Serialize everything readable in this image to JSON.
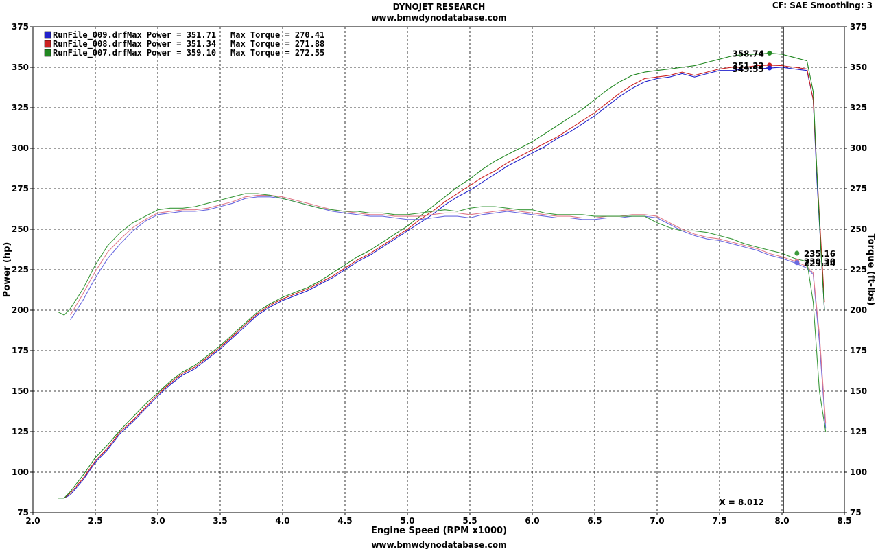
{
  "header": {
    "title": "DYNOJET RESEARCH",
    "website_top": "www.bmwdynodatabase.com",
    "settings": "CF: SAE  Smoothing: 3",
    "website_bottom": "www.bmwdynodatabase.com"
  },
  "colors": {
    "background": "#ffffff",
    "grid": "#000000",
    "run_009": "#2222cc",
    "run_008": "#cc2222",
    "run_007": "#228822",
    "run_009_torque": "#6a6ae0",
    "run_008_torque": "#e07a8a",
    "run_007_torque": "#3d9a3d"
  },
  "chart_data": {
    "type": "line",
    "title": "DYNOJET RESEARCH",
    "xlabel": "Engine Speed (RPM x1000)",
    "ylabel": "Power (hp)",
    "ylabel_right": "Torque (ft-lbs)",
    "xlim": [
      2.0,
      8.5
    ],
    "ylim": [
      75,
      375
    ],
    "ylim_right": [
      75,
      375
    ],
    "grid": true,
    "legend_position": "top-left",
    "x_ticks": [
      "2.0",
      "2.5",
      "3.0",
      "3.5",
      "4.0",
      "4.5",
      "5.0",
      "5.5",
      "6.0",
      "6.5",
      "7.0",
      "7.5",
      "8.0",
      "8.5"
    ],
    "y_ticks": [
      "75",
      "100",
      "125",
      "150",
      "175",
      "200",
      "225",
      "250",
      "275",
      "300",
      "325",
      "350",
      "375"
    ],
    "cursor": {
      "x": 8.012,
      "label": "X = 8.012"
    },
    "legend": [
      {
        "file": "RunFile_009.drf",
        "power_text": "Max Power = 351.71",
        "torque_text": "Max Torque = 270.41",
        "color_key": "run_009"
      },
      {
        "file": "RunFile_008.drf",
        "power_text": "Max Power = 351.34",
        "torque_text": "Max Torque = 271.88",
        "color_key": "run_008"
      },
      {
        "file": "RunFile_007.drf",
        "power_text": "Max Power = 359.10",
        "torque_text": "Max Torque = 272.55",
        "color_key": "run_007"
      }
    ],
    "cursor_readouts": {
      "power": [
        {
          "label": "358.74",
          "value": 358.74,
          "color_key": "run_007"
        },
        {
          "label": "351.32",
          "value": 351.32,
          "color_key": "run_008"
        },
        {
          "label": "349.55",
          "value": 349.55,
          "color_key": "run_009"
        }
      ],
      "torque": [
        {
          "label": "235.16",
          "value": 235.16,
          "color_key": "run_007_torque"
        },
        {
          "label": "230.30",
          "value": 230.3,
          "color_key": "run_008_torque"
        },
        {
          "label": "229.34",
          "value": 229.34,
          "color_key": "run_009_torque"
        }
      ]
    },
    "series": [
      {
        "name": "RunFile_009.drf",
        "measure": "power",
        "color_key": "run_009",
        "x": [
          2.25,
          2.3,
          2.4,
          2.5,
          2.6,
          2.7,
          2.8,
          2.9,
          3.0,
          3.1,
          3.2,
          3.3,
          3.4,
          3.5,
          3.6,
          3.7,
          3.8,
          3.9,
          4.0,
          4.1,
          4.2,
          4.3,
          4.4,
          4.5,
          4.6,
          4.7,
          4.8,
          4.9,
          5.0,
          5.1,
          5.2,
          5.3,
          5.4,
          5.5,
          5.6,
          5.7,
          5.8,
          5.9,
          6.0,
          6.1,
          6.2,
          6.3,
          6.4,
          6.5,
          6.6,
          6.7,
          6.8,
          6.9,
          7.0,
          7.1,
          7.2,
          7.3,
          7.4,
          7.5,
          7.6,
          7.7,
          7.8,
          7.9,
          8.0,
          8.1,
          8.2,
          8.25,
          8.28,
          8.31,
          8.34
        ],
        "y": [
          84,
          86,
          95,
          106,
          114,
          124,
          131,
          139,
          147,
          154,
          160,
          164,
          170,
          176,
          183,
          190,
          197,
          202,
          206,
          209,
          212,
          216,
          220,
          225,
          230,
          234,
          239,
          244,
          249,
          254,
          259,
          265,
          270,
          274,
          279,
          284,
          289,
          293,
          297,
          301,
          306,
          310,
          315,
          320,
          326,
          332,
          337,
          341,
          343,
          344,
          346,
          344,
          346,
          348,
          348,
          349,
          349,
          349.55,
          350,
          349,
          348,
          330,
          280,
          240,
          200
        ]
      },
      {
        "name": "RunFile_008.drf",
        "measure": "power",
        "color_key": "run_008",
        "x": [
          2.25,
          2.3,
          2.4,
          2.5,
          2.6,
          2.7,
          2.8,
          2.9,
          3.0,
          3.1,
          3.2,
          3.3,
          3.4,
          3.5,
          3.6,
          3.7,
          3.8,
          3.9,
          4.0,
          4.1,
          4.2,
          4.3,
          4.4,
          4.5,
          4.6,
          4.7,
          4.8,
          4.9,
          5.0,
          5.1,
          5.2,
          5.3,
          5.4,
          5.5,
          5.6,
          5.7,
          5.8,
          5.9,
          6.0,
          6.1,
          6.2,
          6.3,
          6.4,
          6.5,
          6.6,
          6.7,
          6.8,
          6.9,
          7.0,
          7.1,
          7.2,
          7.3,
          7.4,
          7.5,
          7.6,
          7.7,
          7.8,
          7.9,
          8.0,
          8.1,
          8.2,
          8.25,
          8.28,
          8.31,
          8.34
        ],
        "y": [
          84,
          87,
          96,
          107,
          115,
          125,
          132,
          140,
          148,
          155,
          161,
          165,
          171,
          177,
          184,
          191,
          198,
          203,
          207,
          210,
          213,
          217,
          221,
          226,
          231,
          235,
          240,
          245,
          250,
          256,
          261,
          267,
          272,
          277,
          282,
          286,
          291,
          295,
          299,
          303,
          307,
          312,
          317,
          322,
          328,
          334,
          339,
          343,
          344,
          345,
          347,
          345,
          347,
          349,
          350,
          350,
          351,
          351.32,
          351,
          350,
          349,
          330,
          285,
          245,
          205
        ]
      },
      {
        "name": "RunFile_007.drf",
        "measure": "power",
        "color_key": "run_007",
        "x": [
          2.2,
          2.25,
          2.3,
          2.4,
          2.5,
          2.6,
          2.7,
          2.8,
          2.9,
          3.0,
          3.1,
          3.2,
          3.3,
          3.4,
          3.5,
          3.6,
          3.7,
          3.8,
          3.9,
          4.0,
          4.1,
          4.2,
          4.3,
          4.4,
          4.5,
          4.6,
          4.7,
          4.8,
          4.9,
          5.0,
          5.1,
          5.2,
          5.3,
          5.4,
          5.5,
          5.6,
          5.7,
          5.8,
          5.9,
          6.0,
          6.1,
          6.2,
          6.3,
          6.4,
          6.5,
          6.6,
          6.7,
          6.8,
          6.9,
          7.0,
          7.1,
          7.2,
          7.3,
          7.4,
          7.5,
          7.6,
          7.7,
          7.8,
          7.9,
          8.0,
          8.1,
          8.2,
          8.25,
          8.28,
          8.31,
          8.34
        ],
        "y": [
          84,
          84,
          88,
          98,
          109,
          117,
          126,
          134,
          142,
          149,
          156,
          162,
          166,
          172,
          178,
          185,
          192,
          199,
          204,
          208,
          211,
          214,
          218,
          223,
          228,
          233,
          237,
          242,
          247,
          252,
          258,
          264,
          270,
          276,
          281,
          287,
          292,
          296,
          300,
          304,
          309,
          314,
          319,
          324,
          330,
          336,
          341,
          345,
          347,
          348,
          349,
          350,
          351,
          353,
          355,
          357,
          358,
          358,
          358.74,
          358,
          356,
          354,
          335,
          285,
          240,
          200
        ]
      },
      {
        "name": "RunFile_009.drf",
        "measure": "torque",
        "color_key": "run_009_torque",
        "x": [
          2.3,
          2.4,
          2.5,
          2.6,
          2.7,
          2.8,
          2.9,
          3.0,
          3.1,
          3.2,
          3.3,
          3.4,
          3.5,
          3.6,
          3.7,
          3.8,
          3.9,
          4.0,
          4.1,
          4.2,
          4.3,
          4.4,
          4.5,
          4.6,
          4.7,
          4.8,
          4.9,
          5.0,
          5.1,
          5.2,
          5.3,
          5.4,
          5.5,
          5.6,
          5.7,
          5.8,
          5.9,
          6.0,
          6.1,
          6.2,
          6.3,
          6.4,
          6.5,
          6.6,
          6.7,
          6.8,
          6.9,
          7.0,
          7.1,
          7.2,
          7.3,
          7.4,
          7.5,
          7.6,
          7.7,
          7.8,
          7.9,
          8.0,
          8.1,
          8.2,
          8.25,
          8.3,
          8.35
        ],
        "y": [
          194,
          206,
          220,
          232,
          241,
          249,
          255,
          259,
          260,
          261,
          261,
          262,
          264,
          266,
          269,
          270,
          270,
          269,
          267,
          265,
          263,
          261,
          260,
          259,
          258,
          258,
          257,
          256,
          256,
          257,
          258,
          258,
          257,
          259,
          260,
          261,
          260,
          259,
          258,
          257,
          257,
          256,
          256,
          257,
          257,
          258,
          258,
          257,
          253,
          249,
          246,
          244,
          243,
          241,
          239,
          237,
          234,
          232,
          229.34,
          226,
          222,
          180,
          127
        ]
      },
      {
        "name": "RunFile_008.drf",
        "measure": "torque",
        "color_key": "run_008_torque",
        "x": [
          2.3,
          2.4,
          2.5,
          2.6,
          2.7,
          2.8,
          2.9,
          3.0,
          3.1,
          3.2,
          3.3,
          3.4,
          3.5,
          3.6,
          3.7,
          3.8,
          3.9,
          4.0,
          4.1,
          4.2,
          4.3,
          4.4,
          4.5,
          4.6,
          4.7,
          4.8,
          4.9,
          5.0,
          5.1,
          5.2,
          5.3,
          5.4,
          5.5,
          5.6,
          5.7,
          5.8,
          5.9,
          6.0,
          6.1,
          6.2,
          6.3,
          6.4,
          6.5,
          6.6,
          6.7,
          6.8,
          6.9,
          7.0,
          7.1,
          7.2,
          7.3,
          7.4,
          7.5,
          7.6,
          7.7,
          7.8,
          7.9,
          8.0,
          8.1,
          8.2,
          8.25,
          8.3,
          8.35
        ],
        "y": [
          197,
          210,
          224,
          236,
          244,
          251,
          256,
          260,
          261,
          262,
          262,
          263,
          265,
          267,
          270,
          271,
          271,
          270,
          268,
          266,
          264,
          262,
          261,
          260,
          259,
          259,
          258,
          258,
          258,
          259,
          260,
          260,
          259,
          260,
          261,
          262,
          261,
          260,
          259,
          258,
          258,
          257,
          257,
          258,
          258,
          259,
          259,
          258,
          254,
          250,
          247,
          245,
          244,
          242,
          240,
          238,
          235,
          233,
          230.3,
          227,
          223,
          185,
          130
        ]
      },
      {
        "name": "RunFile_007.drf",
        "measure": "torque",
        "color_key": "run_007_torque",
        "x": [
          2.2,
          2.25,
          2.3,
          2.4,
          2.5,
          2.6,
          2.7,
          2.8,
          2.9,
          3.0,
          3.1,
          3.2,
          3.3,
          3.4,
          3.5,
          3.6,
          3.7,
          3.8,
          3.9,
          4.0,
          4.1,
          4.2,
          4.3,
          4.4,
          4.5,
          4.6,
          4.7,
          4.8,
          4.9,
          5.0,
          5.1,
          5.2,
          5.3,
          5.4,
          5.5,
          5.6,
          5.7,
          5.8,
          5.9,
          6.0,
          6.1,
          6.2,
          6.3,
          6.4,
          6.5,
          6.6,
          6.7,
          6.8,
          6.9,
          7.0,
          7.1,
          7.2,
          7.3,
          7.4,
          7.5,
          7.6,
          7.7,
          7.8,
          7.9,
          8.0,
          8.1,
          8.2,
          8.25,
          8.3,
          8.35
        ],
        "y": [
          199,
          197,
          201,
          213,
          228,
          240,
          248,
          254,
          258,
          262,
          263,
          263,
          264,
          266,
          268,
          270,
          272,
          272,
          271,
          269,
          267,
          265,
          263,
          262,
          261,
          261,
          260,
          260,
          259,
          259,
          260,
          261,
          262,
          261,
          263,
          264,
          264,
          263,
          262,
          262,
          260,
          259,
          259,
          259,
          258,
          258,
          258,
          258,
          258,
          254,
          251,
          249,
          249,
          248,
          246,
          244,
          241,
          239,
          237,
          235.16,
          232,
          230,
          205,
          150,
          125
        ]
      }
    ]
  }
}
